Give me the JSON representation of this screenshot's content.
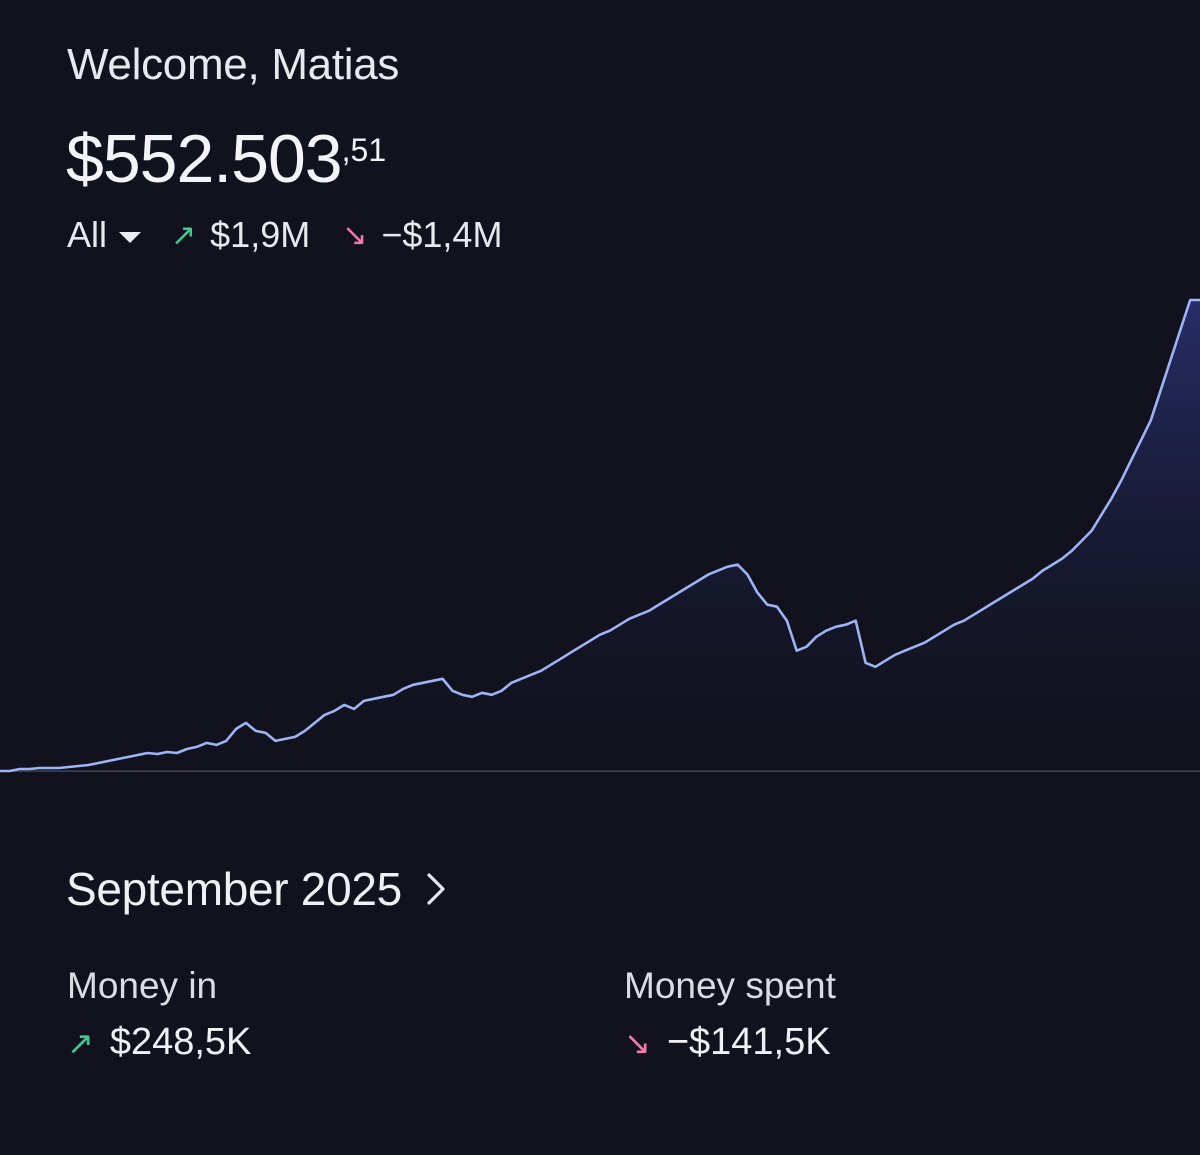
{
  "header": {
    "greeting": "Welcome, Matias",
    "balance_main": "$552.503",
    "balance_cents": ",51",
    "filter_label": "All",
    "total_in": "$1,9M",
    "total_out": "−$1,4M"
  },
  "chart_data": {
    "type": "area",
    "x_label": "",
    "y_label": "",
    "series": [
      {
        "values": [
          0,
          0,
          2,
          2,
          3,
          3,
          3,
          4,
          5,
          6,
          8,
          10,
          12,
          14,
          16,
          18,
          17,
          19,
          18,
          22,
          24,
          28,
          26,
          30,
          42,
          48,
          40,
          38,
          30,
          32,
          34,
          40,
          48,
          56,
          60,
          66,
          62,
          70,
          72,
          74,
          76,
          82,
          86,
          88,
          90,
          92,
          80,
          76,
          74,
          78,
          76,
          80,
          88,
          92,
          96,
          100,
          106,
          112,
          118,
          124,
          130,
          136,
          140,
          146,
          152,
          156,
          160,
          166,
          172,
          178,
          184,
          190,
          196,
          200,
          204,
          206,
          196,
          178,
          166,
          164,
          150,
          120,
          124,
          134,
          140,
          144,
          146,
          150,
          108,
          104,
          110,
          116,
          120,
          124,
          128,
          134,
          140,
          146,
          150,
          156,
          162,
          168,
          174,
          180,
          186,
          192,
          200,
          206,
          212,
          220,
          230,
          240,
          256,
          272,
          290,
          310,
          330,
          350,
          380,
          410,
          440,
          470,
          470
        ]
      }
    ]
  },
  "month_summary": {
    "month_label": "September 2025",
    "money_in_label": "Money in",
    "money_in_value": "$248,5K",
    "money_spent_label": "Money spent",
    "money_spent_value": "−$141,5K"
  },
  "colors": {
    "background": "#11121d",
    "line": "#9db4f5",
    "positive": "#3ecb92",
    "negative": "#f07aa8"
  }
}
